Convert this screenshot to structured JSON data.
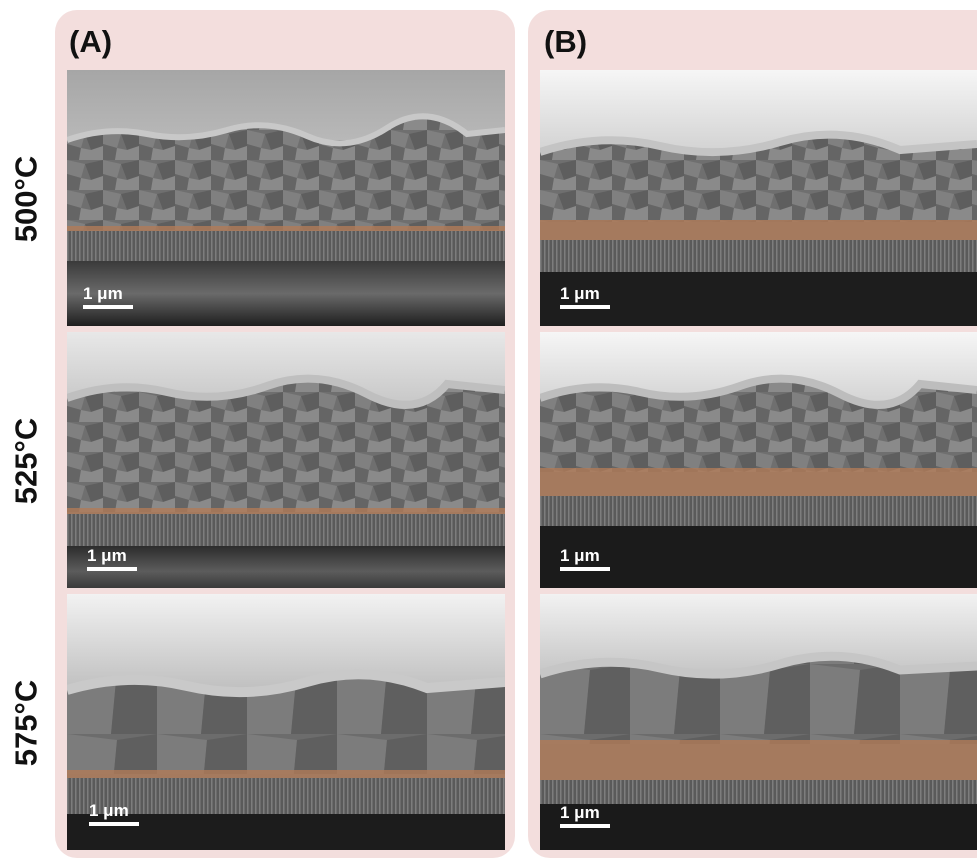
{
  "rows": [
    {
      "label": "500°C"
    },
    {
      "label": "525°C"
    },
    {
      "label": "575°C"
    }
  ],
  "panels": [
    {
      "label": "(A)"
    },
    {
      "label": "(B)"
    }
  ],
  "scale_bar": "1 μm",
  "colors": {
    "panel_background": "#f3dedd",
    "substrate_highlight": "#b07a58"
  }
}
